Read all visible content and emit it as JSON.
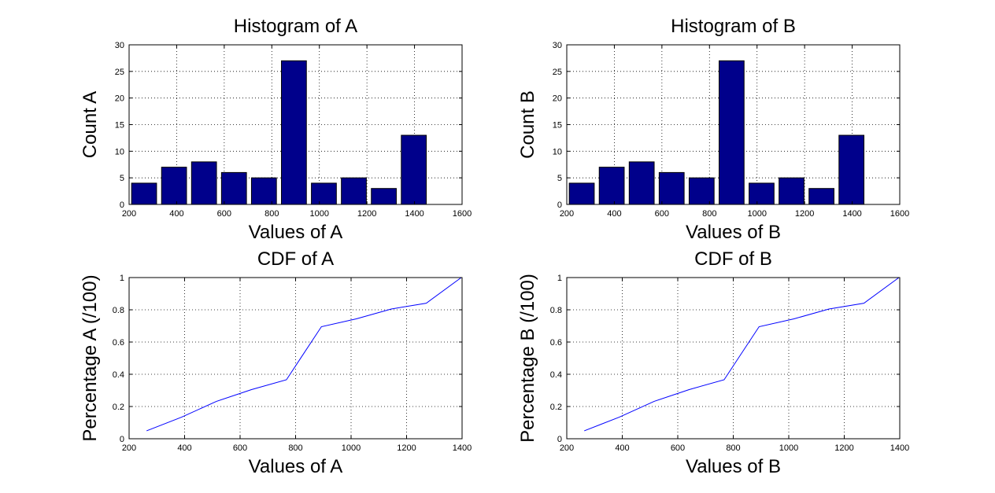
{
  "chart_data": [
    {
      "id": "hist-a",
      "type": "bar",
      "title": "Histogram of A",
      "xlabel": "Values of A",
      "ylabel": "Count A",
      "xlim": [
        200,
        1600
      ],
      "ylim": [
        0,
        30
      ],
      "xticks": [
        200,
        400,
        600,
        800,
        1000,
        1200,
        1400,
        1600
      ],
      "yticks": [
        0,
        5,
        10,
        15,
        20,
        25,
        30
      ],
      "grid": true,
      "bar_width": 105,
      "x": [
        263,
        389,
        515,
        641,
        767,
        893,
        1019,
        1145,
        1271,
        1397
      ],
      "values": [
        4,
        7,
        8,
        6,
        5,
        27,
        4,
        5,
        3,
        13
      ],
      "color": "#00008b"
    },
    {
      "id": "hist-b",
      "type": "bar",
      "title": "Histogram of B",
      "xlabel": "Values of B",
      "ylabel": "Count B",
      "xlim": [
        200,
        1600
      ],
      "ylim": [
        0,
        30
      ],
      "xticks": [
        200,
        400,
        600,
        800,
        1000,
        1200,
        1400,
        1600
      ],
      "yticks": [
        0,
        5,
        10,
        15,
        20,
        25,
        30
      ],
      "grid": true,
      "bar_width": 105,
      "x": [
        263,
        389,
        515,
        641,
        767,
        893,
        1019,
        1145,
        1271,
        1397
      ],
      "values": [
        4,
        7,
        8,
        6,
        5,
        27,
        4,
        5,
        3,
        13
      ],
      "color": "#00008b"
    },
    {
      "id": "cdf-a",
      "type": "line",
      "title": "CDF of A",
      "xlabel": "Values of A",
      "ylabel": "Percentage A (/100)",
      "xlim": [
        200,
        1400
      ],
      "ylim": [
        0,
        1
      ],
      "xticks": [
        200,
        400,
        600,
        800,
        1000,
        1200,
        1400
      ],
      "yticks": [
        0,
        0.2,
        0.4,
        0.6,
        0.8,
        1
      ],
      "grid": true,
      "x": [
        263,
        389,
        515,
        641,
        767,
        893,
        1019,
        1145,
        1271,
        1397
      ],
      "y": [
        0.049,
        0.134,
        0.232,
        0.305,
        0.366,
        0.695,
        0.744,
        0.805,
        0.841,
        1.0
      ],
      "color": "#0000ff"
    },
    {
      "id": "cdf-b",
      "type": "line",
      "title": "CDF of B",
      "xlabel": "Values of B",
      "ylabel": "Percentage B (/100)",
      "xlim": [
        200,
        1400
      ],
      "ylim": [
        0,
        1
      ],
      "xticks": [
        200,
        400,
        600,
        800,
        1000,
        1200,
        1400
      ],
      "yticks": [
        0,
        0.2,
        0.4,
        0.6,
        0.8,
        1
      ],
      "grid": true,
      "x": [
        263,
        389,
        515,
        641,
        767,
        893,
        1019,
        1145,
        1271,
        1397
      ],
      "y": [
        0.049,
        0.134,
        0.232,
        0.305,
        0.366,
        0.695,
        0.744,
        0.805,
        0.841,
        1.0
      ],
      "color": "#0000ff"
    }
  ]
}
